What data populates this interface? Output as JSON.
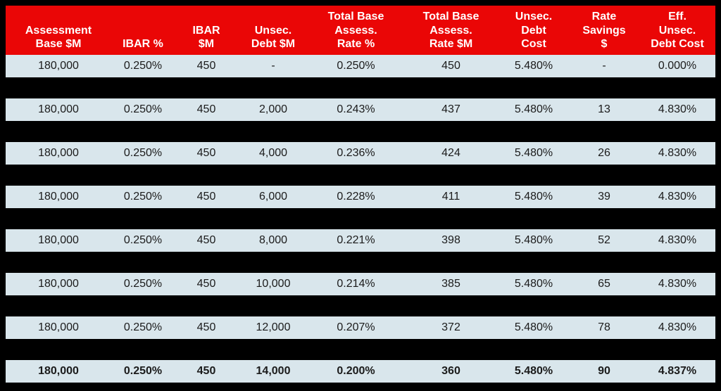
{
  "colors": {
    "header_bg": "#EA0606",
    "header_text": "#FFFFFF",
    "row_bg": "#D9E6EC",
    "separator_bg": "#000000",
    "data_text": "#1B1B1B"
  },
  "columns": [
    {
      "label": "Assessment\nBase $M"
    },
    {
      "label": "IBAR %"
    },
    {
      "label": "IBAR\n$M"
    },
    {
      "label": "Unsec.\nDebt $M"
    },
    {
      "label": "Total Base\nAssess.\nRate %"
    },
    {
      "label": "Total Base\nAssess.\nRate $M"
    },
    {
      "label": "Unsec.\nDebt\nCost"
    },
    {
      "label": "Rate\nSavings\n$"
    },
    {
      "label": "Eff.\nUnsec.\nDebt Cost"
    }
  ],
  "rows": [
    {
      "bold": false,
      "cells": [
        "180,000",
        "0.250%",
        "450",
        "-",
        "0.250%",
        "450",
        "5.480%",
        "-",
        "0.000%"
      ]
    },
    {
      "bold": false,
      "cells": [
        "180,000",
        "0.250%",
        "450",
        "2,000",
        "0.243%",
        "437",
        "5.480%",
        "13",
        "4.830%"
      ]
    },
    {
      "bold": false,
      "cells": [
        "180,000",
        "0.250%",
        "450",
        "4,000",
        "0.236%",
        "424",
        "5.480%",
        "26",
        "4.830%"
      ]
    },
    {
      "bold": false,
      "cells": [
        "180,000",
        "0.250%",
        "450",
        "6,000",
        "0.228%",
        "411",
        "5.480%",
        "39",
        "4.830%"
      ]
    },
    {
      "bold": false,
      "cells": [
        "180,000",
        "0.250%",
        "450",
        "8,000",
        "0.221%",
        "398",
        "5.480%",
        "52",
        "4.830%"
      ]
    },
    {
      "bold": false,
      "cells": [
        "180,000",
        "0.250%",
        "450",
        "10,000",
        "0.214%",
        "385",
        "5.480%",
        "65",
        "4.830%"
      ]
    },
    {
      "bold": false,
      "cells": [
        "180,000",
        "0.250%",
        "450",
        "12,000",
        "0.207%",
        "372",
        "5.480%",
        "78",
        "4.830%"
      ]
    },
    {
      "bold": true,
      "cells": [
        "180,000",
        "0.250%",
        "450",
        "14,000",
        "0.200%",
        "360",
        "5.480%",
        "90",
        "4.837%"
      ]
    }
  ],
  "chart_data": {
    "type": "table",
    "title": "",
    "columns": [
      "Assessment Base $M",
      "IBAR %",
      "IBAR $M",
      "Unsec. Debt $M",
      "Total Base Assess. Rate %",
      "Total Base Assess. Rate $M",
      "Unsec. Debt Cost",
      "Rate Savings $",
      "Eff. Unsec. Debt Cost"
    ],
    "rows": [
      [
        "180,000",
        "0.250%",
        "450",
        "-",
        "0.250%",
        "450",
        "5.480%",
        "-",
        "0.000%"
      ],
      [
        "180,000",
        "0.250%",
        "450",
        "2,000",
        "0.243%",
        "437",
        "5.480%",
        "13",
        "4.830%"
      ],
      [
        "180,000",
        "0.250%",
        "450",
        "4,000",
        "0.236%",
        "424",
        "5.480%",
        "26",
        "4.830%"
      ],
      [
        "180,000",
        "0.250%",
        "450",
        "6,000",
        "0.228%",
        "411",
        "5.480%",
        "39",
        "4.830%"
      ],
      [
        "180,000",
        "0.250%",
        "450",
        "8,000",
        "0.221%",
        "398",
        "5.480%",
        "52",
        "4.830%"
      ],
      [
        "180,000",
        "0.250%",
        "450",
        "10,000",
        "0.214%",
        "385",
        "5.480%",
        "65",
        "4.830%"
      ],
      [
        "180,000",
        "0.250%",
        "450",
        "12,000",
        "0.207%",
        "372",
        "5.480%",
        "78",
        "4.830%"
      ],
      [
        "180,000",
        "0.250%",
        "450",
        "14,000",
        "0.200%",
        "360",
        "5.480%",
        "90",
        "4.837%"
      ]
    ],
    "notes": "Last row is emphasized in bold. Rows alternate with black separator bands; header band is red with white bold text; data rows are light blue."
  }
}
